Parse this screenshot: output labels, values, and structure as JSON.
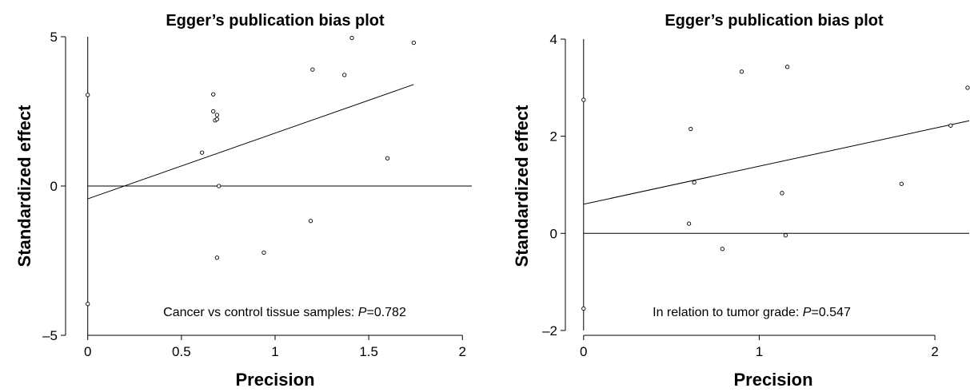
{
  "chart_data": [
    {
      "type": "scatter",
      "title": "Egger’s publication bias plot",
      "xlabel": "Precision",
      "ylabel": "Standardized effect",
      "xlim": [
        -0.05,
        2.05
      ],
      "ylim": [
        -5,
        5
      ],
      "xticks": [
        0,
        0.5,
        1,
        1.5,
        2
      ],
      "xtick_labels": [
        "0",
        "0.5",
        "1",
        "1.5",
        "2"
      ],
      "yticks": [
        -5,
        0,
        5
      ],
      "ytick_labels": [
        "–5",
        "0",
        "5"
      ],
      "annotation": {
        "prefix": "Cancer vs control tissue samples: ",
        "p_label": "P",
        "p_value": "=0.782"
      },
      "regression_line": {
        "x": [
          0,
          1.74
        ],
        "y": [
          -0.43,
          3.4
        ]
      },
      "reference_lines": {
        "vertical_x": 0,
        "horizontal_y": 0
      },
      "points": {
        "x": [
          0.0,
          0.0,
          0.61,
          0.67,
          0.67,
          0.68,
          0.69,
          0.69,
          0.7,
          0.69,
          0.94,
          1.19,
          1.2,
          1.37,
          1.41,
          1.6,
          1.74
        ],
        "y": [
          3.05,
          -3.95,
          1.12,
          3.07,
          2.5,
          2.2,
          2.38,
          2.24,
          0.0,
          -2.4,
          -2.23,
          -1.17,
          3.9,
          3.72,
          4.96,
          0.93,
          4.8
        ]
      }
    },
    {
      "type": "scatter",
      "title": "Egger’s publication bias plot",
      "xlabel": "Precision",
      "ylabel": "Standardized effect",
      "xlim": [
        -0.04,
        2.2
      ],
      "ylim": [
        -2.1,
        4.05
      ],
      "xticks": [
        0,
        1,
        2
      ],
      "xtick_labels": [
        "0",
        "1",
        "2"
      ],
      "yticks": [
        -2,
        0,
        2,
        4
      ],
      "ytick_labels": [
        "–2",
        "0",
        "2",
        "4"
      ],
      "annotation": {
        "prefix": "In relation to tumor grade: ",
        "p_label": "P",
        "p_value": "=0.547"
      },
      "regression_line": {
        "x": [
          0,
          2.2
        ],
        "y": [
          0.6,
          2.32
        ]
      },
      "reference_lines": {
        "vertical_x": 0,
        "horizontal_y": 0
      },
      "points": {
        "x": [
          0.0,
          0.0,
          0.6,
          0.61,
          0.63,
          0.79,
          0.9,
          1.13,
          1.15,
          1.16,
          1.81,
          2.09,
          2.2
        ],
        "y": [
          2.75,
          -1.55,
          0.2,
          2.15,
          1.05,
          -0.32,
          3.33,
          0.83,
          -0.04,
          3.43,
          1.02,
          2.22,
          3.0
        ]
      }
    }
  ]
}
